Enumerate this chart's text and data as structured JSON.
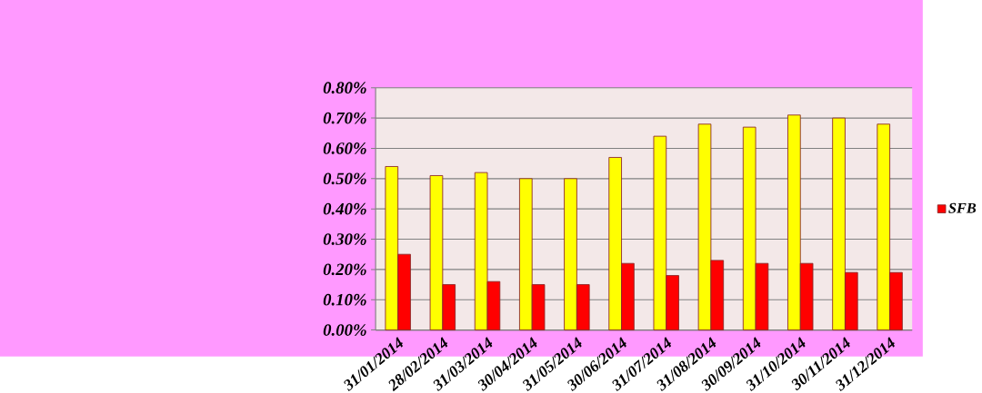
{
  "chart_data": {
    "type": "bar",
    "categories": [
      "31/01/2014",
      "28/02/2014",
      "31/03/2014",
      "30/04/2014",
      "31/05/2014",
      "30/06/2014",
      "31/07/2014",
      "31/08/2014",
      "30/09/2014",
      "31/10/2014",
      "30/11/2014",
      "31/12/2014"
    ],
    "series": [
      {
        "color": "#ffff00",
        "values": [
          0.54,
          0.51,
          0.52,
          0.5,
          0.5,
          0.57,
          0.64,
          0.68,
          0.67,
          0.71,
          0.7,
          0.68
        ]
      },
      {
        "name": "SFB",
        "color": "#ff0000",
        "values": [
          0.25,
          0.15,
          0.16,
          0.15,
          0.15,
          0.22,
          0.18,
          0.23,
          0.22,
          0.22,
          0.19,
          0.19
        ]
      }
    ],
    "ylim": [
      0,
      0.8
    ],
    "yticks": [
      {
        "value": 0,
        "label": "0.00%"
      },
      {
        "value": 0.1,
        "label": "0.10%"
      },
      {
        "value": 0.2,
        "label": "0.20%"
      },
      {
        "value": 0.3,
        "label": "0.30%"
      },
      {
        "value": 0.4,
        "label": "0.40%"
      },
      {
        "value": 0.5,
        "label": "0.50%"
      },
      {
        "value": 0.6,
        "label": "0.60%"
      },
      {
        "value": 0.7,
        "label": "0.70%"
      },
      {
        "value": 0.8,
        "label": "0.80%"
      }
    ],
    "grid": "y",
    "legend": "right"
  }
}
